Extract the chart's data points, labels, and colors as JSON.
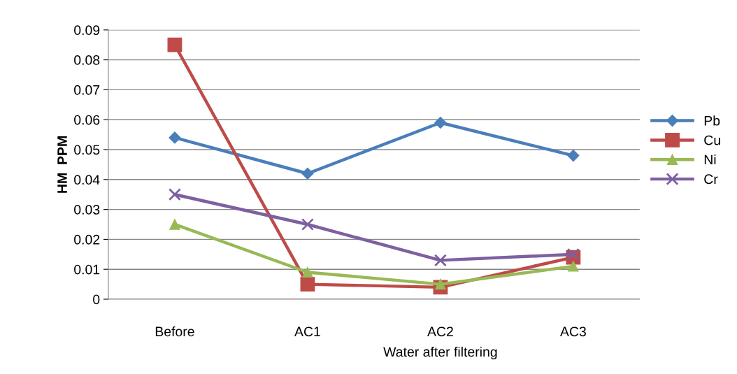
{
  "chart_data": {
    "type": "line",
    "ylabel": "HM  PPM",
    "categories": [
      "Before",
      "AC1",
      "AC2",
      "AC3"
    ],
    "series": [
      {
        "name": "Pb",
        "color": "#4a7ebb",
        "marker": "diamond",
        "values": [
          0.054,
          0.042,
          0.059,
          0.048
        ]
      },
      {
        "name": "Cu",
        "color": "#be4b48",
        "marker": "square",
        "values": [
          0.085,
          0.005,
          0.004,
          0.014
        ]
      },
      {
        "name": "Ni",
        "color": "#98b954",
        "marker": "triangle",
        "values": [
          0.025,
          0.009,
          0.005,
          0.011
        ]
      },
      {
        "name": "Cr",
        "color": "#7d60a0",
        "marker": "cross",
        "values": [
          0.035,
          0.025,
          0.013,
          0.015
        ]
      }
    ],
    "ylim": [
      0,
      0.09
    ],
    "yticks": [
      0,
      0.01,
      0.02,
      0.03,
      0.04,
      0.05,
      0.06,
      0.07,
      0.08,
      0.09
    ],
    "grid": "y",
    "legend": "right",
    "annotations": [
      "Water after filtering"
    ]
  }
}
